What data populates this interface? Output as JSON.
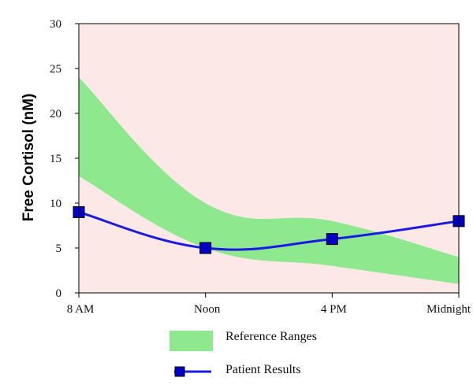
{
  "chart_data": {
    "type": "line",
    "title": "",
    "xlabel": "",
    "ylabel": "Free Cortisol (nM)",
    "ylim": [
      0,
      30
    ],
    "yticks": [
      "0",
      "5",
      "10",
      "15",
      "20",
      "25",
      "30"
    ],
    "categories": [
      "8 AM",
      "Noon",
      "4 PM",
      "Midnight"
    ],
    "reference_range": {
      "name": "Reference Ranges",
      "lower": [
        13,
        5,
        3,
        1
      ],
      "upper": [
        24,
        10,
        8,
        4
      ]
    },
    "series": [
      {
        "name": "Patient Results",
        "values": [
          9,
          5,
          6,
          8
        ]
      }
    ],
    "legend": {
      "position": "bottom-center"
    },
    "colors": {
      "plot_background": "#fde8e8",
      "reference_fill": "#8ee88e",
      "line": "#1a1ae6",
      "marker_fill": "#0000cc"
    },
    "grid": false
  }
}
